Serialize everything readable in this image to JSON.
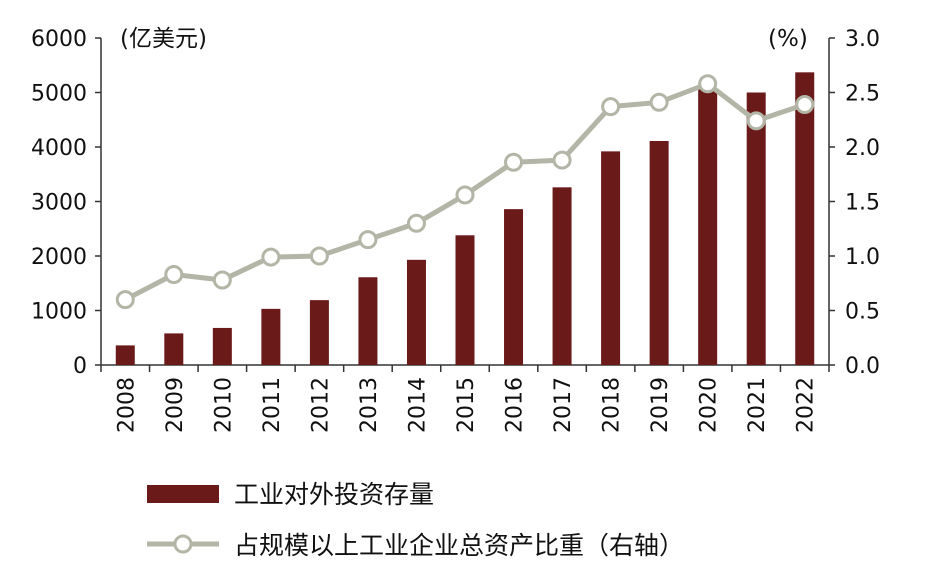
{
  "chart_data": {
    "type": "bar",
    "categories": [
      "2008",
      "2009",
      "2010",
      "2011",
      "2012",
      "2013",
      "2014",
      "2015",
      "2016",
      "2017",
      "2018",
      "2019",
      "2020",
      "2021",
      "2022"
    ],
    "series": [
      {
        "name": "工业对外投资存量",
        "type": "bar",
        "axis": "left",
        "values": [
          360,
          580,
          680,
          1030,
          1190,
          1610,
          1930,
          2380,
          2860,
          3260,
          3920,
          4110,
          5080,
          5000,
          5370
        ],
        "color": "#6b1a1a"
      },
      {
        "name": "占规模以上工业企业总资产比重（右轴）",
        "type": "line",
        "axis": "right",
        "values": [
          0.6,
          0.83,
          0.78,
          0.99,
          1.0,
          1.15,
          1.3,
          1.56,
          1.86,
          1.88,
          2.37,
          2.41,
          2.58,
          2.24,
          2.39
        ],
        "color": "#b3b5a6"
      }
    ],
    "y_left": {
      "unit_label": "(亿美元)",
      "ticks": [
        "0",
        "1000",
        "2000",
        "3000",
        "4000",
        "5000",
        "6000"
      ],
      "ylim": [
        0,
        6000
      ]
    },
    "y_right": {
      "unit_label": "(%)",
      "ticks": [
        "0.0",
        "0.5",
        "1.0",
        "1.5",
        "2.0",
        "2.5",
        "3.0"
      ],
      "ylim": [
        0,
        3.0
      ]
    },
    "grid": false,
    "legend_position": "bottom"
  }
}
